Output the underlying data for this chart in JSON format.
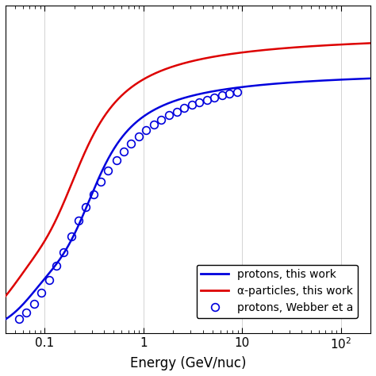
{
  "xlabel": "Energy (GeV/nuc)",
  "ylabel": "",
  "xlim": [
    0.04,
    200
  ],
  "ylim": [
    0.0,
    1.05
  ],
  "grid_color": "#c0c0c0",
  "background_color": "#ffffff",
  "blue_color": "#0000dd",
  "red_color": "#dd0000",
  "circle_color": "#0000dd",
  "legend_labels": [
    "protons, this work",
    "α-particles, this work",
    "protons, Webber et a"
  ],
  "figsize": [
    4.74,
    4.74
  ],
  "dpi": 100,
  "webber_E": [
    0.055,
    0.065,
    0.078,
    0.092,
    0.11,
    0.13,
    0.155,
    0.185,
    0.22,
    0.26,
    0.31,
    0.37,
    0.44,
    0.53,
    0.63,
    0.75,
    0.9,
    1.07,
    1.27,
    1.52,
    1.82,
    2.17,
    2.58,
    3.08,
    3.68,
    4.38,
    5.22,
    6.23,
    7.43,
    8.86
  ],
  "webber_Y": [
    0.045,
    0.065,
    0.095,
    0.13,
    0.17,
    0.215,
    0.26,
    0.31,
    0.36,
    0.405,
    0.445,
    0.485,
    0.522,
    0.553,
    0.582,
    0.607,
    0.63,
    0.65,
    0.668,
    0.684,
    0.698,
    0.71,
    0.721,
    0.731,
    0.74,
    0.748,
    0.755,
    0.762,
    0.768,
    0.774
  ]
}
